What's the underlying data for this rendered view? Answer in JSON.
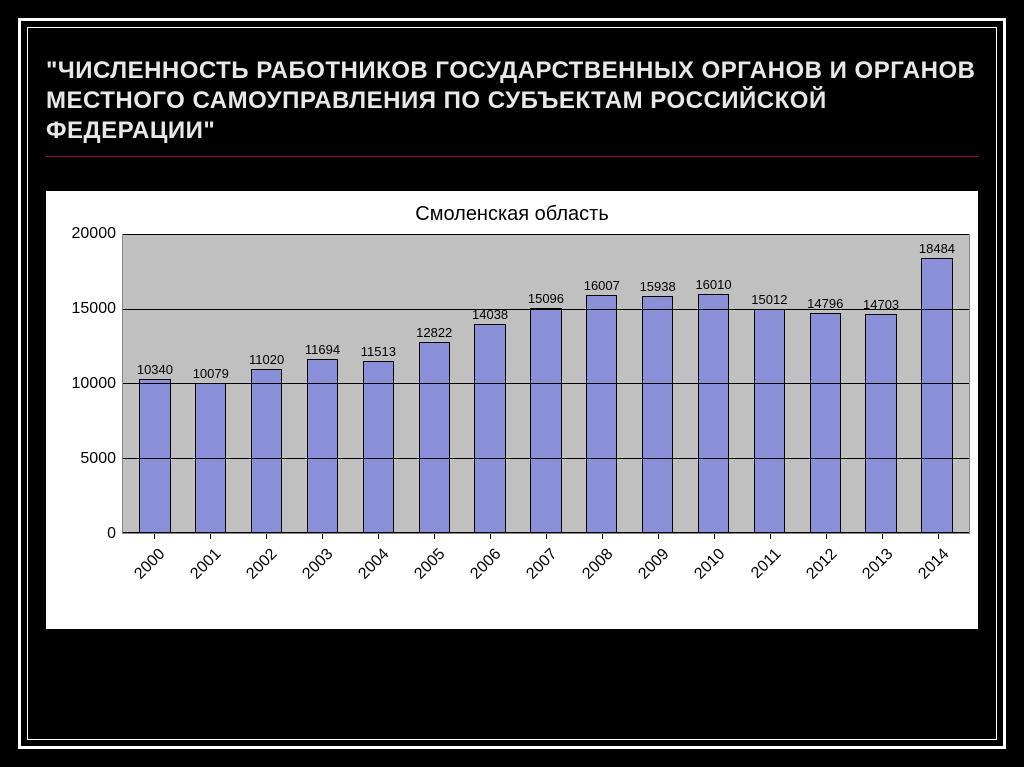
{
  "slide": {
    "title": "\"ЧИСЛЕННОСТЬ РАБОТНИКОВ ГОСУДАРСТВЕННЫХ ОРГАНОВ И ОРГАНОВ МЕСТНОГО САМОУПРАВЛЕНИЯ ПО СУБЪЕКТАМ РОССИЙСКОЙ ФЕДЕРАЦИИ\"",
    "background_color": "#000000",
    "frame_color": "#ffffff",
    "title_color": "#e8e8e8",
    "underline_color": "#8a2020"
  },
  "chart": {
    "type": "bar",
    "title": "Смоленская область",
    "title_fontsize": 20,
    "categories": [
      "2000",
      "2001",
      "2002",
      "2003",
      "2004",
      "2005",
      "2006",
      "2007",
      "2008",
      "2009",
      "2010",
      "2011",
      "2012",
      "2013",
      "2014"
    ],
    "values": [
      10340,
      10079,
      11020,
      11694,
      11513,
      12822,
      14038,
      15096,
      16007,
      15938,
      16010,
      15012,
      14796,
      14703,
      18484
    ],
    "bar_color": "#8a90d8",
    "bar_border_color": "#000000",
    "bar_width": 0.56,
    "ylim": [
      0,
      20000
    ],
    "ytick_step": 5000,
    "yticks": [
      0,
      5000,
      10000,
      15000,
      20000
    ],
    "plot_background": "#c0c0c0",
    "panel_background": "#ffffff",
    "grid_color": "#000000",
    "axis_fontsize": 16,
    "data_label_fontsize": 13,
    "x_label_rotation_deg": -45
  }
}
